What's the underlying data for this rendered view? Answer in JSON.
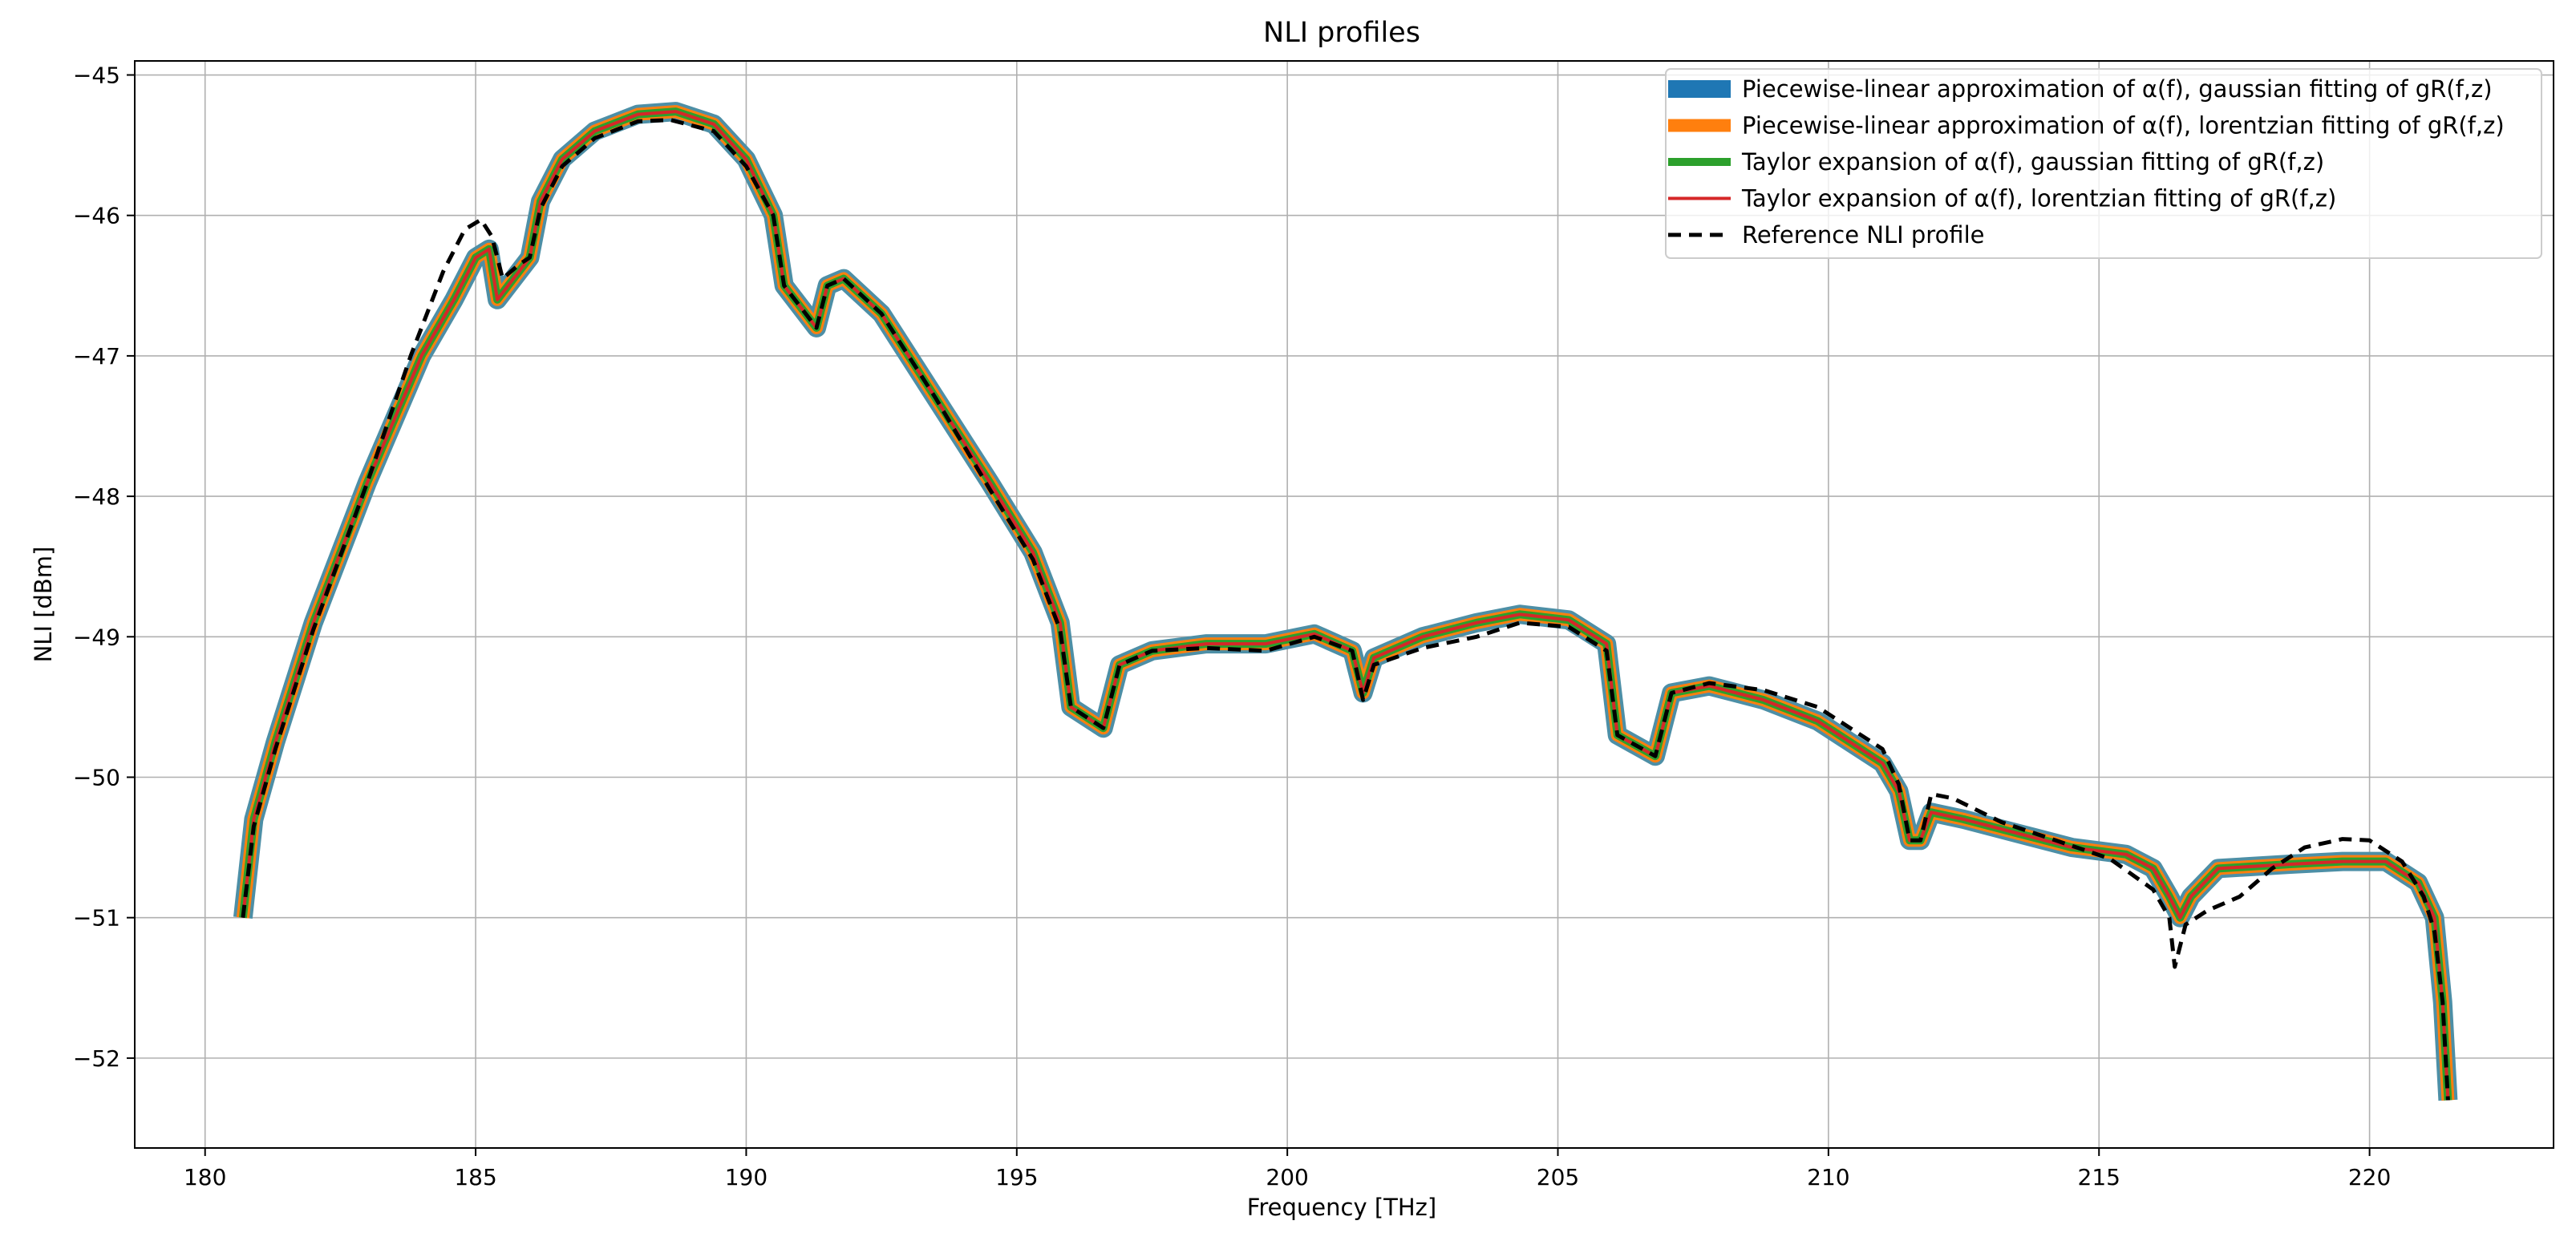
{
  "chart_data": {
    "type": "line",
    "title": "NLI profiles",
    "xlabel": "Frequency [THz]",
    "ylabel": "NLI [dBm]",
    "xlim": [
      178.7,
      223.4
    ],
    "ylim": [
      -52.64,
      -44.9
    ],
    "xticks": [
      180,
      185,
      190,
      195,
      200,
      205,
      210,
      215,
      220
    ],
    "yticks": [
      -52,
      -51,
      -50,
      -49,
      -48,
      -47,
      -46,
      -45
    ],
    "xtick_labels": [
      "180",
      "185",
      "190",
      "195",
      "200",
      "205",
      "210",
      "215",
      "220"
    ],
    "ytick_labels": [
      "−52",
      "−51",
      "−50",
      "−49",
      "−48",
      "−47",
      "−46",
      "−45"
    ],
    "grid": true,
    "legend_position": "top-right",
    "series": [
      {
        "name": "Piecewise-linear approximation of α(f), gaussian fitting of gR(f,z)",
        "color": "#1f77b4",
        "style": "solid-thick",
        "points": [
          [
            180.7,
            -51.0
          ],
          [
            180.9,
            -50.3
          ],
          [
            181.3,
            -49.75
          ],
          [
            182.0,
            -48.9
          ],
          [
            183.0,
            -47.9
          ],
          [
            184.0,
            -47.0
          ],
          [
            184.6,
            -46.6
          ],
          [
            185.0,
            -46.3
          ],
          [
            185.25,
            -46.24
          ],
          [
            185.4,
            -46.6
          ],
          [
            185.7,
            -46.45
          ],
          [
            186.0,
            -46.3
          ],
          [
            186.2,
            -45.9
          ],
          [
            186.6,
            -45.6
          ],
          [
            187.2,
            -45.4
          ],
          [
            188.0,
            -45.28
          ],
          [
            188.7,
            -45.26
          ],
          [
            189.4,
            -45.35
          ],
          [
            190.0,
            -45.6
          ],
          [
            190.5,
            -46.0
          ],
          [
            190.7,
            -46.5
          ],
          [
            191.3,
            -46.8
          ],
          [
            191.5,
            -46.5
          ],
          [
            191.8,
            -46.45
          ],
          [
            192.5,
            -46.7
          ],
          [
            193.5,
            -47.3
          ],
          [
            194.5,
            -47.9
          ],
          [
            195.3,
            -48.4
          ],
          [
            195.8,
            -48.9
          ],
          [
            196.0,
            -49.5
          ],
          [
            196.6,
            -49.65
          ],
          [
            196.9,
            -49.2
          ],
          [
            197.5,
            -49.1
          ],
          [
            198.5,
            -49.05
          ],
          [
            199.6,
            -49.05
          ],
          [
            200.5,
            -48.98
          ],
          [
            201.2,
            -49.1
          ],
          [
            201.4,
            -49.4
          ],
          [
            201.6,
            -49.15
          ],
          [
            202.5,
            -49.0
          ],
          [
            203.5,
            -48.9
          ],
          [
            204.3,
            -48.84
          ],
          [
            205.2,
            -48.88
          ],
          [
            205.9,
            -49.05
          ],
          [
            206.1,
            -49.7
          ],
          [
            206.8,
            -49.85
          ],
          [
            207.1,
            -49.4
          ],
          [
            207.8,
            -49.35
          ],
          [
            208.8,
            -49.45
          ],
          [
            209.8,
            -49.6
          ],
          [
            211.0,
            -49.9
          ],
          [
            211.3,
            -50.1
          ],
          [
            211.5,
            -50.45
          ],
          [
            211.7,
            -50.45
          ],
          [
            211.9,
            -50.25
          ],
          [
            212.5,
            -50.3
          ],
          [
            213.5,
            -50.4
          ],
          [
            214.5,
            -50.5
          ],
          [
            215.5,
            -50.55
          ],
          [
            216.0,
            -50.65
          ],
          [
            216.3,
            -50.85
          ],
          [
            216.5,
            -51.0
          ],
          [
            216.7,
            -50.85
          ],
          [
            217.2,
            -50.65
          ],
          [
            218.5,
            -50.62
          ],
          [
            219.5,
            -50.6
          ],
          [
            220.3,
            -50.6
          ],
          [
            220.9,
            -50.75
          ],
          [
            221.2,
            -51.0
          ],
          [
            221.35,
            -51.6
          ],
          [
            221.45,
            -52.3
          ]
        ]
      },
      {
        "name": "Piecewise-linear approximation of α(f), lorentzian fitting of gR(f,z)",
        "color": "#ff7f0e",
        "style": "solid-thick"
      },
      {
        "name": "Taylor expansion of α(f), gaussian fitting of gR(f,z)",
        "color": "#2ca02c",
        "style": "solid-medium"
      },
      {
        "name": "Taylor expansion of α(f), lorentzian fitting of gR(f,z)",
        "color": "#d62728",
        "style": "solid-thin"
      },
      {
        "name": "Reference NLI profile",
        "color": "#000000",
        "style": "dashed",
        "points": [
          [
            180.7,
            -51.0
          ],
          [
            180.9,
            -50.35
          ],
          [
            181.3,
            -49.8
          ],
          [
            182.0,
            -48.95
          ],
          [
            183.0,
            -47.9
          ],
          [
            183.8,
            -47.0
          ],
          [
            184.4,
            -46.4
          ],
          [
            184.8,
            -46.1
          ],
          [
            185.1,
            -46.03
          ],
          [
            185.3,
            -46.15
          ],
          [
            185.5,
            -46.45
          ],
          [
            185.8,
            -46.35
          ],
          [
            186.0,
            -46.3
          ],
          [
            186.2,
            -45.95
          ],
          [
            186.6,
            -45.65
          ],
          [
            187.2,
            -45.45
          ],
          [
            188.0,
            -45.33
          ],
          [
            188.6,
            -45.32
          ],
          [
            189.4,
            -45.4
          ],
          [
            190.0,
            -45.65
          ],
          [
            190.5,
            -46.0
          ],
          [
            190.7,
            -46.5
          ],
          [
            191.3,
            -46.8
          ],
          [
            191.5,
            -46.5
          ],
          [
            191.8,
            -46.45
          ],
          [
            192.5,
            -46.7
          ],
          [
            193.5,
            -47.3
          ],
          [
            194.5,
            -47.95
          ],
          [
            195.3,
            -48.45
          ],
          [
            195.8,
            -48.95
          ],
          [
            196.0,
            -49.5
          ],
          [
            196.6,
            -49.65
          ],
          [
            196.9,
            -49.2
          ],
          [
            197.5,
            -49.1
          ],
          [
            198.5,
            -49.08
          ],
          [
            199.6,
            -49.1
          ],
          [
            200.5,
            -49.0
          ],
          [
            201.2,
            -49.1
          ],
          [
            201.4,
            -49.45
          ],
          [
            201.6,
            -49.2
          ],
          [
            202.5,
            -49.08
          ],
          [
            203.5,
            -49.0
          ],
          [
            204.3,
            -48.9
          ],
          [
            205.2,
            -48.93
          ],
          [
            205.9,
            -49.1
          ],
          [
            206.1,
            -49.7
          ],
          [
            206.8,
            -49.85
          ],
          [
            207.1,
            -49.4
          ],
          [
            207.8,
            -49.33
          ],
          [
            208.8,
            -49.38
          ],
          [
            209.8,
            -49.5
          ],
          [
            211.0,
            -49.8
          ],
          [
            211.3,
            -50.05
          ],
          [
            211.5,
            -50.45
          ],
          [
            211.7,
            -50.45
          ],
          [
            211.9,
            -50.12
          ],
          [
            212.3,
            -50.15
          ],
          [
            213.2,
            -50.32
          ],
          [
            214.2,
            -50.45
          ],
          [
            215.2,
            -50.58
          ],
          [
            216.0,
            -50.8
          ],
          [
            216.3,
            -51.0
          ],
          [
            216.4,
            -51.35
          ],
          [
            216.6,
            -51.05
          ],
          [
            217.0,
            -50.95
          ],
          [
            217.6,
            -50.85
          ],
          [
            218.2,
            -50.65
          ],
          [
            218.8,
            -50.5
          ],
          [
            219.5,
            -50.44
          ],
          [
            220.0,
            -50.45
          ],
          [
            220.6,
            -50.6
          ],
          [
            221.0,
            -50.85
          ],
          [
            221.2,
            -51.1
          ],
          [
            221.35,
            -51.6
          ],
          [
            221.45,
            -52.3
          ]
        ]
      }
    ]
  }
}
